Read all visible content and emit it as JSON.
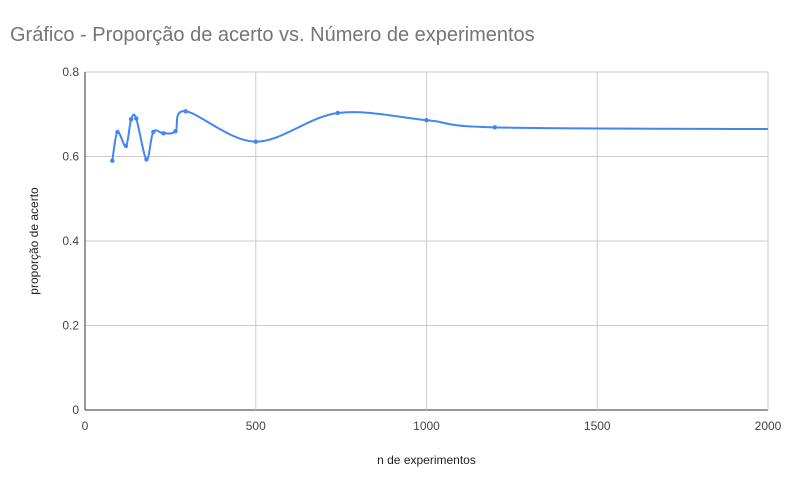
{
  "title": "Gráfico - Proporção de acerto vs. Número de experimentos",
  "chart_data": {
    "type": "line",
    "title": "Gráfico - Proporção de acerto vs. Número de experimentos",
    "xlabel": "n de experimentos",
    "ylabel": "proporção de acerto",
    "xlim": [
      0,
      2000
    ],
    "ylim": [
      0,
      0.8
    ],
    "x_ticks": [
      "0",
      "500",
      "1000",
      "1500",
      "2000"
    ],
    "y_ticks": [
      "0",
      "0.2",
      "0.4",
      "0.6",
      "0.8"
    ],
    "grid": true,
    "legend": "none",
    "line_color": "#4285f4",
    "series": [
      {
        "x": [
          80,
          95,
          120,
          135,
          150,
          180,
          200,
          230,
          265,
          295,
          500,
          740,
          1000,
          1200,
          2000
        ],
        "y": [
          0.59,
          0.658,
          0.625,
          0.688,
          0.69,
          0.593,
          0.658,
          0.655,
          0.66,
          0.707,
          0.635,
          0.703,
          0.686,
          0.669,
          0.665
        ]
      }
    ]
  }
}
